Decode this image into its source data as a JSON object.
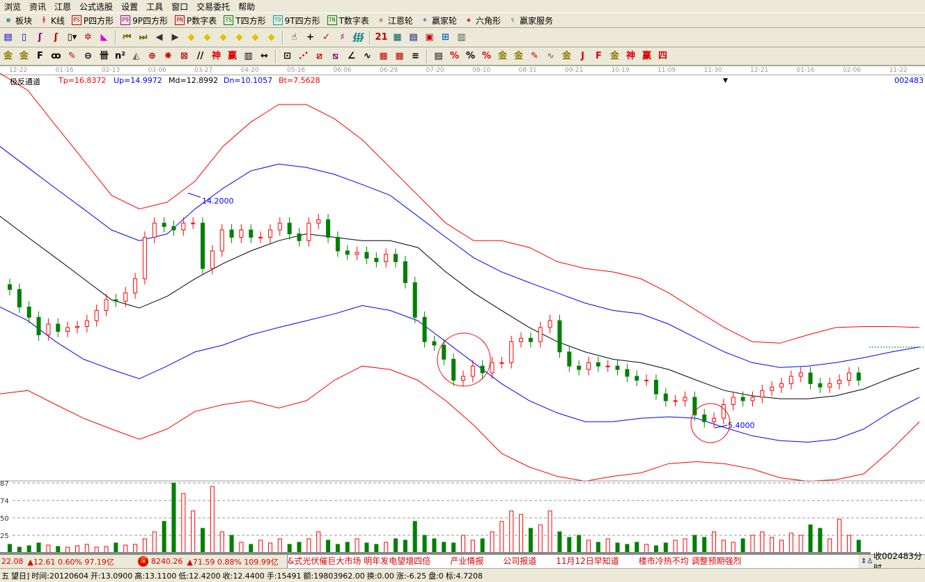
{
  "menu": [
    "浏览",
    "资讯",
    "江恩",
    "公式选股",
    "设置",
    "工具",
    "窗口",
    "交易委托",
    "帮助"
  ],
  "toolbar1": [
    {
      "icon": "grid-icon",
      "label": "板块",
      "color": "#008080",
      "glyph": "▦"
    },
    {
      "icon": "kline-icon",
      "label": "K线",
      "color": "#e00000",
      "glyph": "╫"
    },
    {
      "icon": "ps-icon",
      "label": "P四方形",
      "color": "#c00000",
      "glyph": "PS"
    },
    {
      "icon": "p9-icon",
      "label": "9P四方形",
      "color": "#a000a0",
      "glyph": "P9"
    },
    {
      "icon": "pn-icon",
      "label": "P数字表",
      "color": "#c00000",
      "glyph": "PN"
    },
    {
      "icon": "ts-icon",
      "label": "T四方形",
      "color": "#008000",
      "glyph": "TS"
    },
    {
      "icon": "t9-icon",
      "label": "9T四方形",
      "color": "#00a0c0",
      "glyph": "T9"
    },
    {
      "icon": "tn-icon",
      "label": "T数字表",
      "color": "#008000",
      "glyph": "TN"
    },
    {
      "icon": "gann-wheel-icon",
      "label": "江恩轮",
      "color": "#a00000",
      "glyph": "◎"
    },
    {
      "icon": "winner-wheel-icon",
      "label": "赢家轮",
      "color": "#0060a0",
      "glyph": "⊛"
    },
    {
      "icon": "hexagon-icon",
      "label": "六角形",
      "color": "#c00060",
      "glyph": "◉"
    },
    {
      "icon": "dollar-icon",
      "label": "赢家服务",
      "color": "#40a040",
      "glyph": "$"
    }
  ],
  "toolbar2": [
    {
      "icon": "list-icon",
      "glyph": "▤",
      "color": "#0000c0"
    },
    {
      "icon": "clipboard-icon",
      "glyph": "▯",
      "color": "#0000c0"
    },
    {
      "icon": "wave3-icon",
      "glyph": "ʃ",
      "color": "#800080"
    },
    {
      "icon": "wave9-icon",
      "glyph": "ʃ",
      "color": "#c00000"
    },
    {
      "icon": "candle-type-icon",
      "glyph": "▯▾",
      "color": "#000"
    },
    {
      "icon": "gann-icon",
      "glyph": "✲",
      "color": "#c00000"
    },
    {
      "icon": "flag-icon",
      "glyph": "◣",
      "color": "#e000e0"
    },
    {
      "sep": true
    },
    {
      "icon": "first-icon",
      "glyph": "⏮",
      "color": "#707000"
    },
    {
      "icon": "last-icon",
      "glyph": "⏭",
      "color": "#707000"
    },
    {
      "icon": "prev-icon",
      "glyph": "◀",
      "color": "#333"
    },
    {
      "icon": "next-icon",
      "glyph": "▶",
      "color": "#333"
    },
    {
      "icon": "diamond-left-icon",
      "glyph": "◆",
      "color": "#e0c000"
    },
    {
      "icon": "diamond-right-icon",
      "glyph": "◆",
      "color": "#e0c000"
    },
    {
      "icon": "diamond-h-icon",
      "glyph": "◆",
      "color": "#e0c000"
    },
    {
      "icon": "diamond-x-icon",
      "glyph": "◆",
      "color": "#e0c000"
    },
    {
      "icon": "diamond-star-icon",
      "glyph": "◆",
      "color": "#e0c000"
    },
    {
      "icon": "diamond-v-icon",
      "glyph": "◆",
      "color": "#e0c000"
    },
    {
      "sep": true
    },
    {
      "icon": "hand-icon",
      "glyph": "☝",
      "color": "#000"
    },
    {
      "icon": "crosshair-icon",
      "glyph": "+",
      "color": "#000"
    },
    {
      "icon": "arrow-draw-icon",
      "glyph": "✓",
      "color": "#c00000"
    },
    {
      "icon": "tag-icon",
      "glyph": "♯",
      "color": "#800080"
    },
    {
      "icon": "formula-icon",
      "glyph": "∰",
      "color": "#008080"
    },
    {
      "sep": true
    },
    {
      "icon": "calendar-icon",
      "glyph": "21",
      "color": "#c00000"
    },
    {
      "icon": "calculator-icon",
      "glyph": "▦",
      "color": "#006060"
    },
    {
      "icon": "notes-icon",
      "glyph": "▤",
      "color": "#000080"
    },
    {
      "icon": "save-icon",
      "glyph": "▣",
      "color": "#c00000"
    },
    {
      "icon": "network-icon",
      "glyph": "⊞",
      "color": "#0060c0"
    },
    {
      "icon": "printer-icon",
      "glyph": "▥",
      "color": "#406040"
    }
  ],
  "toolbar3": [
    {
      "icon": "gold-line1-icon",
      "glyph": "金",
      "color": "#808000"
    },
    {
      "icon": "gold-line2-icon",
      "glyph": "金",
      "color": "#808000"
    },
    {
      "icon": "fib-icon",
      "glyph": "F",
      "color": "#000"
    },
    {
      "icon": "spiral-icon",
      "glyph": "ꝏ",
      "color": "#000"
    },
    {
      "icon": "pen-icon",
      "glyph": "✎",
      "color": "#c00000"
    },
    {
      "icon": "circle-line-icon",
      "glyph": "⊖",
      "color": "#000"
    },
    {
      "icon": "bars-icon",
      "glyph": "卌",
      "color": "#000"
    },
    {
      "icon": "n2-icon",
      "glyph": "n²",
      "color": "#000"
    },
    {
      "icon": "triangle-icon",
      "glyph": "◭",
      "color": "#666"
    },
    {
      "icon": "target-icon",
      "glyph": "⊕",
      "color": "#c00000"
    },
    {
      "icon": "web-icon",
      "glyph": "✺",
      "color": "#c00000"
    },
    {
      "icon": "box-x-icon",
      "glyph": "⊠",
      "color": "#c00000"
    },
    {
      "icon": "slash-icon",
      "glyph": "//",
      "color": "#000"
    },
    {
      "icon": "shen-icon",
      "glyph": "神",
      "color": "#e00000"
    },
    {
      "icon": "ying-icon",
      "glyph": "赢",
      "color": "#e00000"
    },
    {
      "icon": "ruler-icon",
      "glyph": "▥",
      "color": "#000"
    },
    {
      "icon": "measure-icon",
      "glyph": "↔",
      "color": "#000"
    },
    {
      "sep": true
    },
    {
      "icon": "rect-icon",
      "glyph": "⊡",
      "color": "#000"
    },
    {
      "icon": "fan-icon",
      "glyph": "⋰",
      "color": "#c00000"
    },
    {
      "icon": "fan-box-icon",
      "glyph": "⧄",
      "color": "#c00000"
    },
    {
      "icon": "fan-box2-icon",
      "glyph": "⧅",
      "color": "#800080"
    },
    {
      "icon": "angle-icon",
      "glyph": "∠",
      "color": "#000"
    },
    {
      "icon": "wave-icon",
      "glyph": "∿",
      "color": "#000"
    },
    {
      "icon": "grid-red-icon",
      "glyph": "▦",
      "color": "#c00000"
    },
    {
      "icon": "grid-red2-icon",
      "glyph": "▦",
      "color": "#c00000"
    },
    {
      "icon": "parallel-icon",
      "glyph": "≡",
      "color": "#000"
    },
    {
      "sep": true
    },
    {
      "icon": "table-icon",
      "glyph": "▤",
      "color": "#000"
    },
    {
      "icon": "percent-slash-icon",
      "glyph": "%",
      "color": "#e00000"
    },
    {
      "icon": "percent-icon",
      "glyph": "%",
      "color": "#000"
    },
    {
      "icon": "percent-lines-icon",
      "glyph": "%",
      "color": "#e00000"
    },
    {
      "icon": "gold-circle-icon",
      "glyph": "金",
      "color": "#808000"
    },
    {
      "icon": "gold-lines-icon",
      "glyph": "金",
      "color": "#808000"
    },
    {
      "icon": "pen-lines-icon",
      "glyph": "✎",
      "color": "#c00000"
    },
    {
      "icon": "sine-icon",
      "glyph": "∿",
      "color": "#808080"
    },
    {
      "icon": "gold-red-icon",
      "glyph": "金",
      "color": "#808000"
    },
    {
      "icon": "j-angle-icon",
      "glyph": "J",
      "color": "#e00000"
    },
    {
      "icon": "f-angle-icon",
      "glyph": "F",
      "color": "#e00000"
    },
    {
      "icon": "gold-angle-icon",
      "glyph": "金",
      "color": "#808000"
    },
    {
      "icon": "shen-angle-icon",
      "glyph": "神",
      "color": "#e00000"
    },
    {
      "icon": "ying-angle-icon",
      "glyph": "赢",
      "color": "#e00000"
    },
    {
      "icon": "si-angle-icon",
      "glyph": "四",
      "color": "#e00000"
    }
  ],
  "date_axis": [
    "12-22",
    "01-16",
    "02-13",
    "03-06",
    "03-27",
    "04-20",
    "05-16",
    "06-06",
    "06-29",
    "07-20",
    "08-10",
    "08-31",
    "09-21",
    "10-19",
    "11-09",
    "11-30",
    "12-21",
    "01-16",
    "02-06",
    "11-22"
  ],
  "indicator": {
    "name": "极反通道",
    "tp": "Tp=16.8372",
    "up": "Up=14.9972",
    "md": "Md=12.8992",
    "dn": "Dn=10.1057",
    "bt": "Bt=7.5628",
    "code": "002483"
  },
  "colors": {
    "up": "#ff0000",
    "down": "#008000",
    "tp": "#ff0000",
    "upline": "#0000ff",
    "md": "#000000",
    "dn": "#0000ff",
    "bt": "#ff0000"
  },
  "chart_data": {
    "type": "candlestick",
    "annotations": {
      "high_label": "14.2000",
      "low_label": "5.4000"
    },
    "channel_lines": {
      "tp": [
        16.74,
        16.39,
        15.67,
        14.96,
        14.24,
        13.96,
        14.1,
        14.53,
        15.24,
        15.74,
        16.1,
        16.1,
        15.81,
        15.38,
        14.81,
        14.24,
        13.67,
        13.31,
        13.31,
        13.17,
        12.88,
        12.74,
        12.67,
        12.53,
        12.24,
        11.88,
        11.53,
        11.24,
        11.21,
        11.38,
        11.53,
        11.55,
        11.55,
        11.53
      ],
      "up": [
        15.24,
        14.81,
        14.38,
        13.96,
        13.53,
        13.31,
        13.45,
        13.96,
        14.38,
        14.74,
        14.88,
        14.81,
        14.67,
        14.46,
        14.24,
        13.81,
        13.38,
        12.96,
        12.67,
        12.45,
        12.24,
        12.03,
        11.88,
        11.81,
        11.6,
        11.31,
        11.03,
        10.81,
        10.71,
        10.74,
        10.81,
        10.91,
        11.03,
        11.13
      ],
      "md": [
        13.81,
        13.38,
        12.96,
        12.53,
        12.1,
        11.93,
        12.17,
        12.53,
        12.84,
        13.1,
        13.31,
        13.45,
        13.38,
        13.31,
        13.31,
        13.17,
        12.67,
        12.24,
        11.88,
        11.53,
        11.24,
        11.03,
        10.88,
        10.81,
        10.67,
        10.45,
        10.24,
        10.13,
        10.07,
        10.07,
        10.13,
        10.27,
        10.5,
        10.7
      ],
      "dn": [
        11.95,
        11.67,
        11.24,
        10.88,
        10.67,
        10.48,
        10.74,
        11.03,
        11.17,
        11.38,
        11.53,
        11.67,
        11.81,
        11.98,
        11.88,
        11.67,
        11.24,
        10.81,
        10.38,
        10.03,
        9.78,
        9.6,
        9.6,
        9.67,
        9.7,
        9.67,
        9.48,
        9.31,
        9.21,
        9.18,
        9.24,
        9.45,
        9.81,
        10.1
      ],
      "bt": [
        10.17,
        10.24,
        9.95,
        9.67,
        9.45,
        9.24,
        9.45,
        9.81,
        9.95,
        10.03,
        9.88,
        10.03,
        10.45,
        10.74,
        10.67,
        10.45,
        10.03,
        9.53,
        8.95,
        8.67,
        8.48,
        8.38,
        8.48,
        8.55,
        8.74,
        8.78,
        8.74,
        8.63,
        8.45,
        8.38,
        8.41,
        8.53,
        9.03,
        9.6
      ]
    },
    "closes": [
      12.31,
      11.95,
      11.74,
      11.38,
      11.6,
      11.45,
      11.53,
      11.55,
      11.67,
      11.88,
      12.1,
      12.07,
      12.24,
      12.53,
      13.38,
      13.67,
      13.6,
      13.53,
      13.67,
      13.67,
      12.74,
      13.1,
      13.53,
      13.38,
      13.53,
      13.38,
      13.38,
      13.53,
      13.67,
      13.45,
      13.31,
      13.67,
      13.74,
      13.38,
      13.1,
      13.03,
      13.07,
      12.95,
      12.88,
      13.03,
      12.88,
      12.45,
      11.74,
      11.24,
      11.17,
      10.88,
      10.45,
      10.53,
      10.74,
      10.6,
      10.81,
      10.81,
      11.24,
      11.31,
      11.24,
      11.53,
      11.67,
      11.03,
      10.74,
      10.67,
      10.81,
      10.74,
      10.74,
      10.67,
      10.53,
      10.45,
      10.45,
      10.17,
      10.03,
      10.03,
      10.1,
      9.74,
      9.6,
      9.67,
      9.95,
      10.1,
      10.03,
      10.1,
      10.24,
      10.31,
      10.38,
      10.53,
      10.6,
      10.38,
      10.31,
      10.38,
      10.45,
      10.6,
      10.45
    ],
    "volume": {
      "ticks": [
        "87",
        "74",
        "50",
        "25"
      ],
      "values": [
        12,
        8,
        10,
        14,
        11,
        9,
        8,
        10,
        12,
        8,
        9,
        14,
        11,
        12,
        20,
        30,
        45,
        100,
        85,
        60,
        35,
        95,
        30,
        25,
        15,
        12,
        18,
        14,
        20,
        12,
        15,
        20,
        30,
        18,
        12,
        15,
        20,
        14,
        12,
        15,
        20,
        18,
        45,
        25,
        20,
        15,
        14,
        25,
        18,
        20,
        30,
        45,
        60,
        55,
        35,
        40,
        60,
        30,
        22,
        25,
        18,
        15,
        20,
        14,
        12,
        15,
        12,
        10,
        14,
        18,
        20,
        25,
        22,
        30,
        18,
        15,
        20,
        25,
        30,
        22,
        18,
        28,
        25,
        40,
        35,
        20,
        48,
        25,
        18
      ]
    }
  },
  "status1": {
    "idx1": "22.08",
    "idx1_chg": "▲12.61 0.60% 97.19亿",
    "idx2_badge": "深",
    "idx2": "8240.26",
    "idx2_chg": "▲71.59 0.88% 109.99亿",
    "news": [
      "&式光伏催巨大市场 明年发电望增四倍",
      "产业情报",
      "公司报道",
      "11月12日早知道",
      "楼市冷热不均 调整预期强烈"
    ],
    "right": "收002483分时"
  },
  "status2": [
    "五",
    "望日]",
    "时间:20120604",
    "开:13.0900",
    "高:13.1100",
    "低:12.4200",
    "收:12.4400",
    "手:15491",
    "额:19803962.00",
    "换:0.00",
    "涨:-6.25",
    "盘:0",
    "标:4.7208"
  ]
}
